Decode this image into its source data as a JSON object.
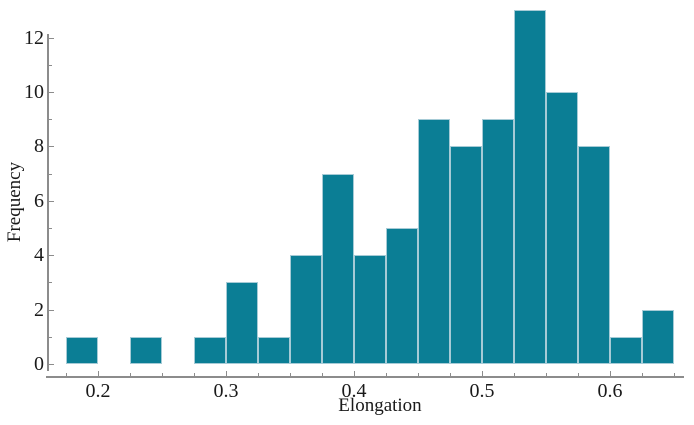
{
  "chart_data": {
    "type": "bar",
    "subtype": "histogram",
    "title": "",
    "xlabel": "Elongation",
    "ylabel": "Frequency",
    "bin_start": 0.175,
    "bin_width": 0.025,
    "frequencies": [
      1,
      0,
      1,
      0,
      1,
      3,
      1,
      4,
      7,
      4,
      5,
      9,
      8,
      9,
      13,
      10,
      8,
      1,
      2
    ],
    "bin_edges": [
      0.175,
      0.2,
      0.225,
      0.25,
      0.275,
      0.3,
      0.325,
      0.35,
      0.375,
      0.4,
      0.425,
      0.45,
      0.475,
      0.5,
      0.525,
      0.55,
      0.575,
      0.6,
      0.625,
      0.65
    ],
    "x_major_ticks": [
      0.2,
      0.3,
      0.4,
      0.5,
      0.6
    ],
    "x_major_tick_labels": [
      "0.2",
      "0.3",
      "0.4",
      "0.5",
      "0.6"
    ],
    "x_minor_tick_start": 0.175,
    "x_minor_tick_end": 0.65,
    "x_minor_tick_step": 0.025,
    "y_major_ticks": [
      0,
      2,
      4,
      6,
      8,
      10,
      12
    ],
    "y_major_tick_labels": [
      "0",
      "2",
      "4",
      "6",
      "8",
      "10",
      "12"
    ],
    "y_minor_ticks": [
      1,
      3,
      5,
      7,
      9,
      11
    ],
    "xlim": [
      0.16,
      0.658
    ],
    "ylim": [
      0,
      12
    ],
    "grid": false,
    "legend": false,
    "colors": {
      "bar_fill": "#0B7E95",
      "bar_edge": "#A6CBD6",
      "axis": "#8C8C8C",
      "text": "#1a1a1a",
      "background": "#FFFFFF"
    }
  }
}
